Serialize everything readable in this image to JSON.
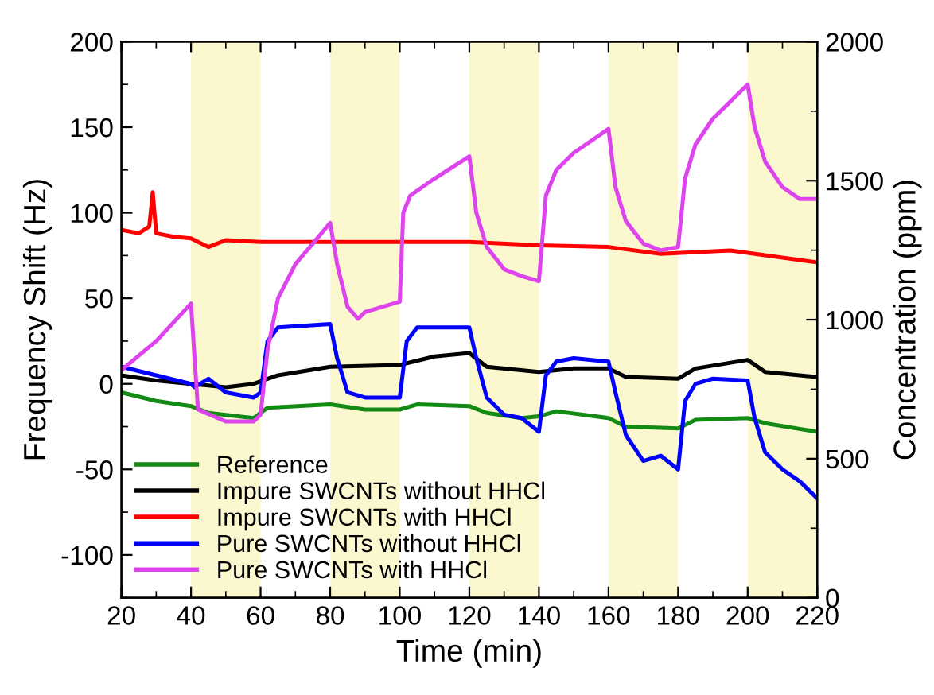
{
  "chart_data": {
    "type": "line",
    "xlabel": "Time (min)",
    "ylabel": "Frequency Shift (Hz)",
    "y2label": "Concentration (ppm)",
    "xlim": [
      20,
      220
    ],
    "xticks": [
      20,
      40,
      60,
      80,
      100,
      120,
      140,
      160,
      180,
      200,
      220
    ],
    "ylim": [
      -125,
      200
    ],
    "yticks": [
      -100,
      -50,
      0,
      50,
      100,
      150,
      200
    ],
    "y2lim": [
      0,
      2000
    ],
    "y2ticks": [
      0,
      500,
      1000,
      1500,
      2000
    ],
    "grid": false,
    "legend": "bottom left",
    "line_style": "solid",
    "marker": "none",
    "bands": [
      {
        "axis": "x",
        "from": 40,
        "to": 60,
        "color": "#fbf8cf"
      },
      {
        "axis": "x",
        "from": 80,
        "to": 100,
        "color": "#fbf8cf"
      },
      {
        "axis": "x",
        "from": 120,
        "to": 140,
        "color": "#fbf8cf"
      },
      {
        "axis": "x",
        "from": 160,
        "to": 180,
        "color": "#fbf8cf"
      },
      {
        "axis": "x",
        "from": 200,
        "to": 220,
        "color": "#fbf8cf"
      }
    ],
    "series": [
      {
        "name": "Reference",
        "color": "#138a13",
        "x": [
          20,
          30,
          40,
          45,
          58,
          62,
          80,
          90,
          100,
          105,
          120,
          125,
          135,
          140,
          145,
          160,
          165,
          180,
          185,
          200,
          205,
          220
        ],
        "values": [
          -5,
          -10,
          -13,
          -17,
          -20,
          -14,
          -12,
          -15,
          -15,
          -12,
          -13,
          -17,
          -20,
          -19,
          -16,
          -20,
          -25,
          -26,
          -21,
          -20,
          -23,
          -28
        ]
      },
      {
        "name": "Impure SWCNTs without HHCl",
        "color": "#000000",
        "x": [
          20,
          30,
          40,
          50,
          58,
          65,
          80,
          100,
          110,
          120,
          125,
          140,
          150,
          160,
          165,
          180,
          185,
          200,
          205,
          220
        ],
        "values": [
          5,
          2,
          0,
          -2,
          0,
          5,
          10,
          11,
          16,
          18,
          10,
          7,
          9,
          9,
          4,
          3,
          9,
          14,
          7,
          4
        ]
      },
      {
        "name": "Impure SWCNTs with HHCl",
        "color": "#ff0000",
        "x": [
          20,
          25,
          28,
          29,
          30,
          35,
          40,
          45,
          50,
          60,
          80,
          100,
          120,
          140,
          160,
          175,
          195,
          220
        ],
        "values": [
          90,
          88,
          92,
          112,
          88,
          86,
          85,
          80,
          84,
          83,
          83,
          83,
          83,
          81,
          80,
          76,
          78,
          71
        ]
      },
      {
        "name": "Pure SWCNTs without HHCl",
        "color": "#0000ff",
        "x": [
          20,
          30,
          40,
          41,
          45,
          50,
          58,
          60,
          62,
          65,
          80,
          82,
          85,
          90,
          95,
          100,
          102,
          105,
          120,
          122,
          125,
          130,
          135,
          140,
          142,
          145,
          150,
          160,
          162,
          165,
          170,
          175,
          180,
          182,
          185,
          190,
          200,
          202,
          205,
          210,
          215,
          220
        ],
        "values": [
          10,
          5,
          0,
          -2,
          3,
          -5,
          -8,
          -5,
          25,
          33,
          35,
          15,
          -5,
          -8,
          -8,
          -8,
          25,
          33,
          33,
          15,
          -8,
          -18,
          -20,
          -28,
          5,
          13,
          15,
          13,
          -5,
          -30,
          -45,
          -42,
          -50,
          -10,
          0,
          3,
          2,
          -20,
          -40,
          -50,
          -57,
          -67
        ]
      },
      {
        "name": "Pure SWCNTs with HHCl",
        "color": "#dd44ee",
        "x": [
          20,
          30,
          40,
          42,
          50,
          58,
          60,
          62,
          65,
          70,
          75,
          80,
          82,
          85,
          88,
          90,
          95,
          100,
          101,
          103,
          110,
          120,
          122,
          125,
          130,
          135,
          140,
          142,
          145,
          150,
          160,
          162,
          165,
          170,
          175,
          180,
          182,
          185,
          190,
          200,
          202,
          205,
          210,
          215,
          220
        ],
        "values": [
          8,
          25,
          47,
          -15,
          -22,
          -22,
          -18,
          20,
          50,
          70,
          82,
          94,
          70,
          45,
          38,
          42,
          45,
          48,
          100,
          110,
          120,
          133,
          100,
          80,
          67,
          63,
          60,
          110,
          125,
          135,
          149,
          115,
          95,
          82,
          78,
          80,
          120,
          140,
          155,
          175,
          150,
          130,
          115,
          108,
          108
        ]
      }
    ]
  }
}
